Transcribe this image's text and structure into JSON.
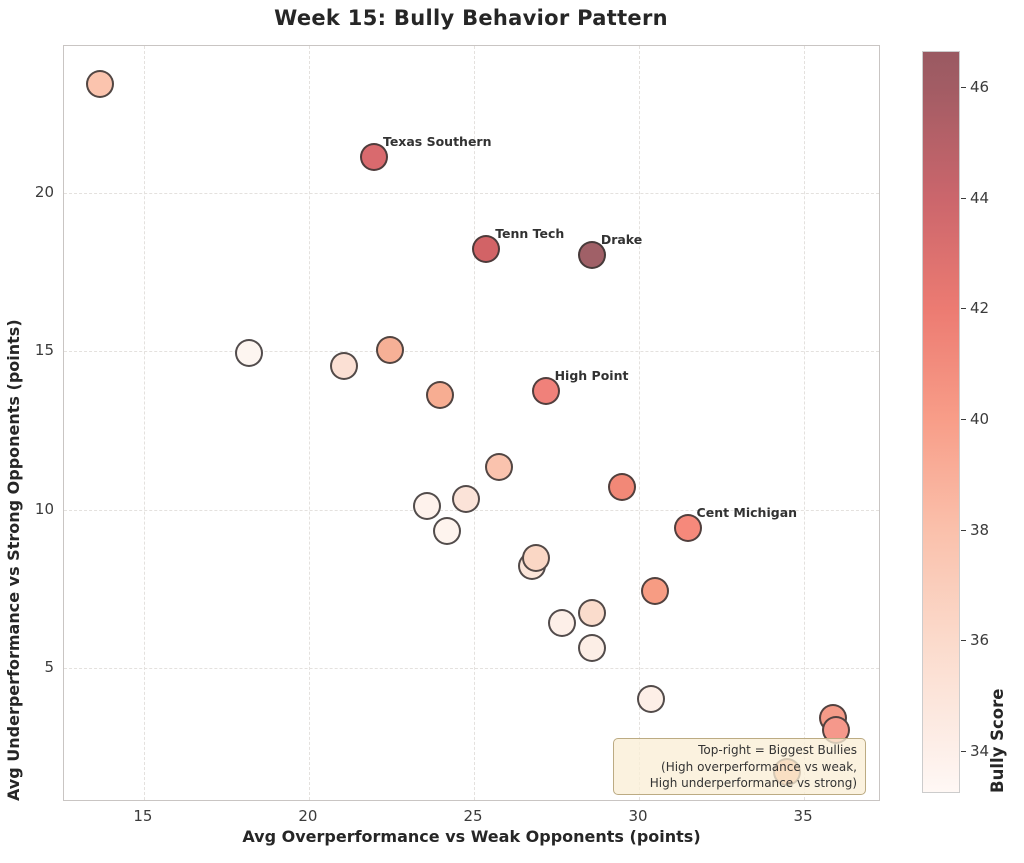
{
  "chart_data": {
    "type": "scatter",
    "title": "Week 15: Bully Behavior Pattern",
    "xlabel": "Avg Overperformance vs Weak Opponents (points)",
    "ylabel": "Avg Underperformance vs Strong Opponents (points)",
    "xlim": [
      12.58,
      37.33
    ],
    "ylim": [
      0.77,
      24.64
    ],
    "xticks": [
      15,
      20,
      25,
      30,
      35
    ],
    "yticks": [
      5,
      10,
      15,
      20
    ],
    "grid": true,
    "legend": "colorbar-right",
    "points": [
      {
        "x": 13.7,
        "y": 23.4,
        "bully_score": 37.3,
        "color": "#FBC4AE"
      },
      {
        "x": 22.0,
        "y": 21.1,
        "bully_score": 43.6,
        "color": "#D96A6E",
        "label": "Texas Southern"
      },
      {
        "x": 25.4,
        "y": 18.2,
        "bully_score": 43.8,
        "color": "#D26366",
        "label": "Tenn Tech"
      },
      {
        "x": 28.6,
        "y": 18.0,
        "bully_score": 46.3,
        "color": "#A06067",
        "label": "Drake"
      },
      {
        "x": 18.2,
        "y": 14.9,
        "bully_score": 33.6,
        "color": "#FDF5F0"
      },
      {
        "x": 21.1,
        "y": 14.5,
        "bully_score": 35.3,
        "color": "#FBE0D4"
      },
      {
        "x": 22.5,
        "y": 15.0,
        "bully_score": 38.4,
        "color": "#F6B096"
      },
      {
        "x": 24.0,
        "y": 13.6,
        "bully_score": 38.6,
        "color": "#F7AD92"
      },
      {
        "x": 27.2,
        "y": 13.7,
        "bully_score": 41.6,
        "color": "#F0817A",
        "label": "High Point"
      },
      {
        "x": 25.8,
        "y": 11.3,
        "bully_score": 37.3,
        "color": "#FAC3AE"
      },
      {
        "x": 23.6,
        "y": 10.1,
        "bully_score": 33.8,
        "color": "#FEF2EC"
      },
      {
        "x": 24.8,
        "y": 10.3,
        "bully_score": 35.1,
        "color": "#FBE3D8"
      },
      {
        "x": 24.2,
        "y": 9.3,
        "bully_score": 33.7,
        "color": "#FEF4EE"
      },
      {
        "x": 29.5,
        "y": 10.7,
        "bully_score": 41.2,
        "color": "#F28877"
      },
      {
        "x": 31.5,
        "y": 9.4,
        "bully_score": 41.0,
        "color": "#F6897B",
        "label": "Cent Michigan"
      },
      {
        "x": 26.8,
        "y": 8.2,
        "bully_score": 35.0,
        "color": "#FBE5D9"
      },
      {
        "x": 26.9,
        "y": 8.45,
        "bully_score": 35.9,
        "color": "#FAD7C5"
      },
      {
        "x": 30.5,
        "y": 7.4,
        "bully_score": 39.8,
        "color": "#F79C83"
      },
      {
        "x": 28.6,
        "y": 6.7,
        "bully_score": 35.7,
        "color": "#FADCCC"
      },
      {
        "x": 27.7,
        "y": 6.4,
        "bully_score": 34.0,
        "color": "#FDEFE8"
      },
      {
        "x": 28.6,
        "y": 5.6,
        "bully_score": 34.1,
        "color": "#FCEEE6"
      },
      {
        "x": 30.4,
        "y": 4.0,
        "bully_score": 34.0,
        "color": "#FDEFE7"
      },
      {
        "x": 35.9,
        "y": 3.4,
        "bully_score": 39.9,
        "color": "#F59B88"
      },
      {
        "x": 36.0,
        "y": 3.0,
        "bully_score": 40.0,
        "color": "#F5988B"
      },
      {
        "x": 34.5,
        "y": 1.7,
        "bully_score": 37.5,
        "color": "#F4A97F"
      }
    ],
    "annotation": {
      "line1": "Top-right = Biggest Bullies",
      "line2": "(High overperformance vs weak,",
      "line3": "High underperformance vs strong)"
    },
    "colorbar": {
      "label": "Bully Score",
      "min": 33.24,
      "max": 46.65,
      "ticks": [
        34,
        36,
        38,
        40,
        42,
        44,
        46
      ],
      "gradient": [
        {
          "value": 33.24,
          "color": "#FFF8F5"
        },
        {
          "value": 34,
          "color": "#FDEFE9"
        },
        {
          "value": 36,
          "color": "#FBDACB"
        },
        {
          "value": 38,
          "color": "#FAC0AB"
        },
        {
          "value": 40,
          "color": "#F89D88"
        },
        {
          "value": 42,
          "color": "#EC7B72"
        },
        {
          "value": 44,
          "color": "#CB666C"
        },
        {
          "value": 46,
          "color": "#A25C64"
        },
        {
          "value": 46.65,
          "color": "#9A5A62"
        }
      ]
    }
  }
}
